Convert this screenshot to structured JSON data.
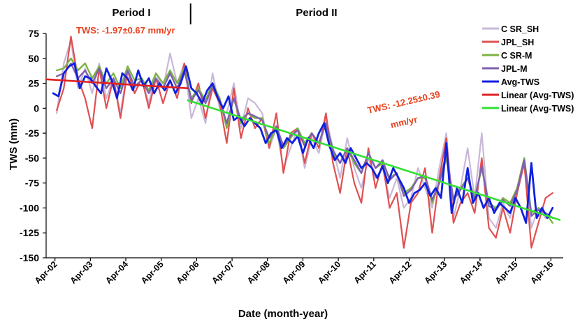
{
  "chart_data": {
    "type": "line",
    "xlabel": "Date (month-year)",
    "ylabel": "TWS (mm)",
    "ylim": [
      -150,
      75
    ],
    "yticks": [
      75,
      50,
      25,
      0,
      -25,
      -50,
      -75,
      -100,
      -125,
      -150
    ],
    "x_domain": [
      2002.0,
      2016.6
    ],
    "xticks": [
      {
        "label": "Apr-02",
        "value": 2002.25
      },
      {
        "label": "Apr-03",
        "value": 2003.25
      },
      {
        "label": "Apr-04",
        "value": 2004.25
      },
      {
        "label": "Apr-05",
        "value": 2005.25
      },
      {
        "label": "Apr-06",
        "value": 2006.25
      },
      {
        "label": "Apr-07",
        "value": 2007.25
      },
      {
        "label": "Apr-08",
        "value": 2008.25
      },
      {
        "label": "Apr-09",
        "value": 2009.25
      },
      {
        "label": "Apr-10",
        "value": 2010.25
      },
      {
        "label": "Apr-11",
        "value": 2011.25
      },
      {
        "label": "Apr-12",
        "value": 2012.25
      },
      {
        "label": "Apr-13",
        "value": 2013.25
      },
      {
        "label": "Apr-14",
        "value": 2014.25
      },
      {
        "label": "Apr-15",
        "value": 2015.25
      },
      {
        "label": "Apr-16",
        "value": 2016.25
      }
    ],
    "periods": [
      {
        "label": "Period I"
      },
      {
        "label": "Period II"
      }
    ],
    "period_divider_x": 2006.0,
    "annotations": [
      {
        "text": "TWS: -1.97±0.67  mm/yr",
        "color": "#e8411d"
      },
      {
        "text": "TWS: -12.25±0.39",
        "color": "#e8411d"
      },
      {
        "text": "mm/yr",
        "color": "#e8411d"
      }
    ],
    "legend_position": "top-right",
    "series": [
      {
        "name": "C SR_SH",
        "color": "#c9b8d8",
        "width": 2.2,
        "x": [
          2002.3,
          2002.5,
          2002.7,
          2002.9,
          2003.1,
          2003.3,
          2003.5,
          2003.7,
          2003.9,
          2004.1,
          2004.3,
          2004.5,
          2004.7,
          2004.9,
          2005.1,
          2005.3,
          2005.5,
          2005.7,
          2005.9,
          2006.1,
          2006.3,
          2006.5,
          2006.7,
          2006.9,
          2007.1,
          2007.3,
          2007.5,
          2007.7,
          2007.9,
          2008.1,
          2008.3,
          2008.5,
          2008.7,
          2008.9,
          2009.1,
          2009.3,
          2009.5,
          2009.7,
          2009.9,
          2010.1,
          2010.3,
          2010.5,
          2010.7,
          2010.9,
          2011.1,
          2011.3,
          2011.5,
          2011.7,
          2011.9,
          2012.1,
          2012.3,
          2012.5,
          2012.7,
          2012.9,
          2013.1,
          2013.3,
          2013.5,
          2013.7,
          2013.9,
          2014.1,
          2014.3,
          2014.5,
          2014.7,
          2014.9,
          2015.1,
          2015.3,
          2015.5,
          2015.7,
          2015.9,
          2016.1
        ],
        "y": [
          -5,
          45,
          68,
          20,
          40,
          15,
          45,
          10,
          30,
          -5,
          40,
          20,
          30,
          5,
          35,
          20,
          55,
          25,
          45,
          -10,
          10,
          -15,
          35,
          0,
          -5,
          25,
          -20,
          10,
          5,
          -5,
          -40,
          -20,
          -60,
          -40,
          -20,
          -60,
          -30,
          -45,
          -10,
          -40,
          -70,
          -30,
          -60,
          -80,
          -50,
          -70,
          -60,
          -90,
          -70,
          -100,
          -90,
          -60,
          -80,
          -100,
          -60,
          -25,
          -110,
          -80,
          -40,
          -90,
          -25,
          -110,
          -120,
          -95,
          -110,
          -80,
          -50,
          -120,
          -100,
          -110
        ]
      },
      {
        "name": "JPL_SH",
        "color": "#e05050",
        "width": 2.2,
        "x": [
          2002.3,
          2002.5,
          2002.7,
          2002.9,
          2003.1,
          2003.3,
          2003.5,
          2003.7,
          2003.9,
          2004.1,
          2004.3,
          2004.5,
          2004.7,
          2004.9,
          2005.1,
          2005.3,
          2005.5,
          2005.7,
          2005.9,
          2006.1,
          2006.3,
          2006.5,
          2006.7,
          2006.9,
          2007.1,
          2007.3,
          2007.5,
          2007.7,
          2007.9,
          2008.1,
          2008.3,
          2008.5,
          2008.7,
          2008.9,
          2009.1,
          2009.3,
          2009.5,
          2009.7,
          2009.9,
          2010.1,
          2010.3,
          2010.5,
          2010.7,
          2010.9,
          2011.1,
          2011.3,
          2011.5,
          2011.7,
          2011.9,
          2012.1,
          2012.3,
          2012.5,
          2012.7,
          2012.9,
          2013.1,
          2013.3,
          2013.5,
          2013.7,
          2013.9,
          2014.1,
          2014.3,
          2014.5,
          2014.7,
          2014.9,
          2015.1,
          2015.3,
          2015.5,
          2015.7,
          2015.9,
          2016.1,
          2016.3
        ],
        "y": [
          -2,
          20,
          72,
          30,
          10,
          -20,
          40,
          0,
          30,
          -10,
          38,
          15,
          30,
          0,
          30,
          5,
          28,
          10,
          45,
          5,
          25,
          -10,
          20,
          5,
          -35,
          20,
          -30,
          0,
          -20,
          -10,
          -40,
          -5,
          -65,
          -25,
          -20,
          -55,
          -25,
          -40,
          -5,
          -55,
          -85,
          -40,
          -75,
          -95,
          -40,
          -80,
          -55,
          -100,
          -85,
          -140,
          -95,
          -85,
          -60,
          -125,
          -70,
          -30,
          -115,
          -95,
          -85,
          -105,
          -50,
          -120,
          -130,
          -100,
          -125,
          -85,
          -55,
          -140,
          -115,
          -90,
          -85
        ]
      },
      {
        "name": "C SR-M",
        "color": "#7cb342",
        "width": 2.4,
        "x": [
          2002.3,
          2002.5,
          2002.7,
          2002.9,
          2003.1,
          2003.3,
          2003.5,
          2003.7,
          2003.9,
          2004.1,
          2004.3,
          2004.5,
          2004.7,
          2004.9,
          2005.1,
          2005.3,
          2005.5,
          2005.7,
          2005.9,
          2006.1,
          2006.3,
          2006.5,
          2006.7,
          2006.9,
          2007.1,
          2007.3,
          2007.5,
          2007.7,
          2007.9,
          2008.1,
          2008.3,
          2008.5,
          2008.7,
          2008.9,
          2009.1,
          2009.3,
          2009.5,
          2009.7,
          2009.9,
          2010.1,
          2010.3,
          2010.5,
          2010.7,
          2010.9,
          2011.1,
          2011.3,
          2011.5,
          2011.7,
          2011.9,
          2012.1,
          2012.3,
          2012.5,
          2012.7,
          2012.9,
          2013.1,
          2013.3,
          2013.5,
          2013.7,
          2013.9,
          2014.1,
          2014.3,
          2014.5,
          2014.7,
          2014.9,
          2015.1,
          2015.3,
          2015.5,
          2015.7,
          2015.9,
          2016.1,
          2016.3
        ],
        "y": [
          38,
          40,
          50,
          38,
          45,
          30,
          42,
          25,
          35,
          20,
          42,
          28,
          30,
          18,
          35,
          25,
          38,
          25,
          40,
          10,
          20,
          8,
          25,
          10,
          -20,
          10,
          -15,
          -5,
          -10,
          -10,
          -35,
          -20,
          -40,
          -30,
          -20,
          -35,
          -25,
          -35,
          -15,
          -45,
          -55,
          -40,
          -55,
          -65,
          -45,
          -60,
          -55,
          -70,
          -65,
          -85,
          -80,
          -70,
          -70,
          -95,
          -75,
          -50,
          -90,
          -80,
          -70,
          -90,
          -60,
          -95,
          -100,
          -90,
          -95,
          -80,
          -50,
          -105,
          -100,
          -105,
          -115
        ]
      },
      {
        "name": "JPL-M",
        "color": "#8060b0",
        "width": 2.4,
        "x": [
          2002.3,
          2002.5,
          2002.7,
          2002.9,
          2003.1,
          2003.3,
          2003.5,
          2003.7,
          2003.9,
          2004.1,
          2004.3,
          2004.5,
          2004.7,
          2004.9,
          2005.1,
          2005.3,
          2005.5,
          2005.7,
          2005.9,
          2006.1,
          2006.3,
          2006.5,
          2006.7,
          2006.9,
          2007.1,
          2007.3,
          2007.5,
          2007.7,
          2007.9,
          2008.1,
          2008.3,
          2008.5,
          2008.7,
          2008.9,
          2009.1,
          2009.3,
          2009.5,
          2009.7,
          2009.9,
          2010.1,
          2010.3,
          2010.5,
          2010.7,
          2010.9,
          2011.1,
          2011.3,
          2011.5,
          2011.7,
          2011.9,
          2012.1,
          2012.3,
          2012.5,
          2012.7,
          2012.9,
          2013.1,
          2013.3,
          2013.5,
          2013.7,
          2013.9,
          2014.1,
          2014.3,
          2014.5,
          2014.7,
          2014.9,
          2015.1,
          2015.3,
          2015.5,
          2015.7,
          2015.9,
          2016.1,
          2016.3
        ],
        "y": [
          32,
          35,
          45,
          30,
          38,
          25,
          40,
          20,
          30,
          15,
          38,
          22,
          28,
          15,
          30,
          20,
          35,
          20,
          38,
          8,
          18,
          5,
          22,
          8,
          -15,
          10,
          -12,
          -5,
          -8,
          -12,
          -30,
          -18,
          -38,
          -28,
          -22,
          -38,
          -25,
          -35,
          -15,
          -42,
          -55,
          -40,
          -52,
          -65,
          -45,
          -60,
          -52,
          -72,
          -65,
          -88,
          -82,
          -70,
          -68,
          -92,
          -75,
          -45,
          -92,
          -82,
          -70,
          -92,
          -58,
          -98,
          -102,
          -92,
          -98,
          -82,
          -52,
          -108,
          -102,
          -105,
          -110
        ]
      },
      {
        "name": "Avg-TWS",
        "color": "#1020e0",
        "width": 2.8,
        "x": [
          2002.2,
          2002.35,
          2002.5,
          2002.65,
          2002.8,
          2002.95,
          2003.1,
          2003.25,
          2003.4,
          2003.55,
          2003.7,
          2003.85,
          2004.0,
          2004.15,
          2004.3,
          2004.45,
          2004.6,
          2004.75,
          2004.9,
          2005.05,
          2005.2,
          2005.35,
          2005.5,
          2005.65,
          2005.8,
          2005.95,
          2006.1,
          2006.25,
          2006.4,
          2006.55,
          2006.7,
          2006.85,
          2007.0,
          2007.15,
          2007.3,
          2007.45,
          2007.6,
          2007.75,
          2007.9,
          2008.05,
          2008.2,
          2008.35,
          2008.5,
          2008.65,
          2008.8,
          2008.95,
          2009.1,
          2009.25,
          2009.4,
          2009.55,
          2009.7,
          2009.85,
          2010.0,
          2010.15,
          2010.3,
          2010.45,
          2010.6,
          2010.75,
          2010.9,
          2011.05,
          2011.2,
          2011.35,
          2011.5,
          2011.65,
          2011.8,
          2011.95,
          2012.1,
          2012.25,
          2012.4,
          2012.55,
          2012.7,
          2012.85,
          2013.0,
          2013.15,
          2013.3,
          2013.45,
          2013.6,
          2013.75,
          2013.9,
          2014.05,
          2014.2,
          2014.35,
          2014.5,
          2014.65,
          2014.8,
          2014.95,
          2015.1,
          2015.25,
          2015.4,
          2015.55,
          2015.7,
          2015.85,
          2016.0,
          2016.15,
          2016.3
        ],
        "y": [
          15,
          12,
          35,
          42,
          45,
          20,
          32,
          30,
          22,
          15,
          40,
          28,
          10,
          35,
          30,
          18,
          38,
          22,
          30,
          15,
          25,
          18,
          28,
          15,
          25,
          42,
          20,
          15,
          5,
          18,
          25,
          10,
          0,
          12,
          -12,
          -8,
          -18,
          -10,
          -15,
          -20,
          -35,
          -25,
          -22,
          -40,
          -30,
          -35,
          -28,
          -45,
          -30,
          -40,
          -25,
          -15,
          -38,
          -52,
          -45,
          -55,
          -40,
          -50,
          -60,
          -55,
          -60,
          -70,
          -58,
          -75,
          -60,
          -70,
          -80,
          -95,
          -85,
          -82,
          -75,
          -88,
          -80,
          -90,
          -35,
          -105,
          -80,
          -95,
          -60,
          -95,
          -85,
          -100,
          -90,
          -105,
          -95,
          -100,
          -105,
          -90,
          -100,
          -115,
          -55,
          -110,
          -100,
          -110,
          -100
        ]
      },
      {
        "name": "Linear (Avg-TWS)",
        "color": "#e02020",
        "width": 2.6,
        "x": [
          2002.0,
          2006.0
        ],
        "y": [
          29,
          20
        ]
      },
      {
        "name": "Linear (Avg-TWS)",
        "color": "#33e033",
        "width": 2.6,
        "x": [
          2006.0,
          2016.5
        ],
        "y": [
          8,
          -112
        ]
      }
    ]
  }
}
